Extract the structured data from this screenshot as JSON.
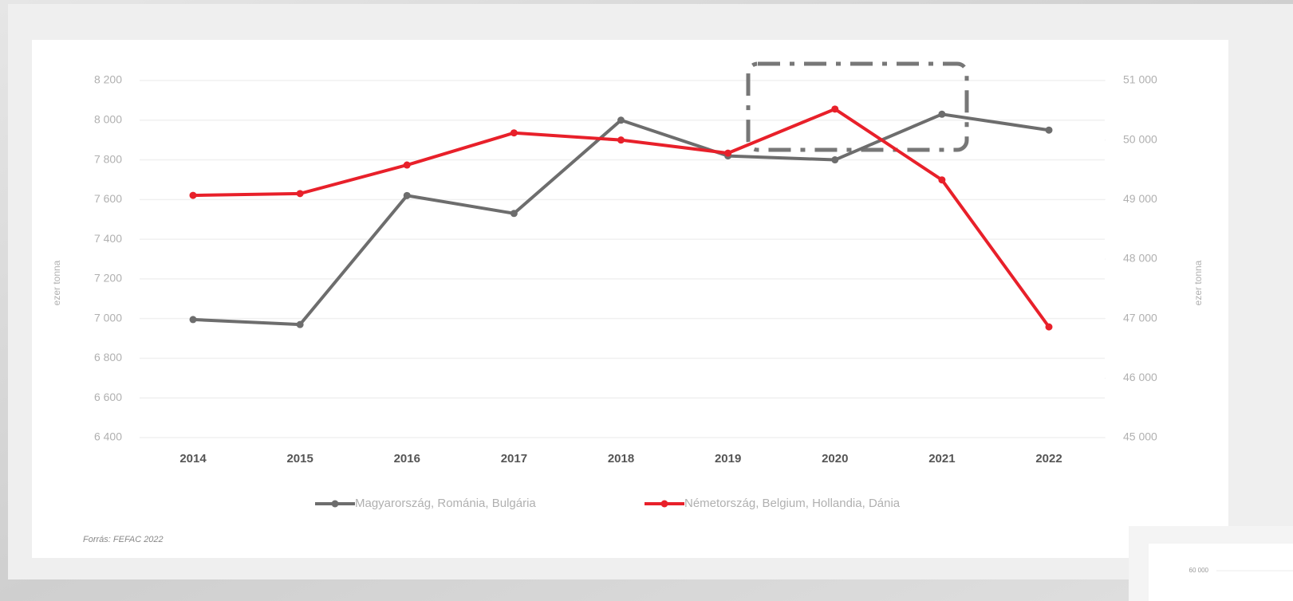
{
  "chart_data": {
    "type": "line",
    "categories": [
      "2014",
      "2015",
      "2016",
      "2017",
      "2018",
      "2019",
      "2020",
      "2021",
      "2022"
    ],
    "series": [
      {
        "name": "Magyarország, Románia, Bulgária",
        "color": "#6d6d6d",
        "axis": "y",
        "values": [
          6995,
          6970,
          7620,
          7530,
          8000,
          7820,
          7800,
          8030,
          7950
        ]
      },
      {
        "name": "Németország, Belgium, Hollandia, Dánia",
        "color": "#e8202a",
        "axis": "y2",
        "values": [
          49070,
          49100,
          49580,
          50120,
          50000,
          49780,
          50520,
          49330,
          46860
        ]
      }
    ],
    "ylim": [
      6400,
      8200
    ],
    "yticks": [
      {
        "value": 6400,
        "label": "6 400"
      },
      {
        "value": 6600,
        "label": "6 600"
      },
      {
        "value": 6800,
        "label": "6 800"
      },
      {
        "value": 7000,
        "label": "7 000"
      },
      {
        "value": 7200,
        "label": "7 200"
      },
      {
        "value": 7400,
        "label": "7 400"
      },
      {
        "value": 7600,
        "label": "7 600"
      },
      {
        "value": 7800,
        "label": "7 800"
      },
      {
        "value": 8000,
        "label": "8 000"
      },
      {
        "value": 8200,
        "label": "8 200"
      }
    ],
    "y2lim": [
      45000,
      51000
    ],
    "y2ticks": [
      {
        "value": 45000,
        "label": "45 000"
      },
      {
        "value": 46000,
        "label": "46 000"
      },
      {
        "value": 47000,
        "label": "47 000"
      },
      {
        "value": 48000,
        "label": "48 000"
      },
      {
        "value": 49000,
        "label": "49 000"
      },
      {
        "value": 50000,
        "label": "50 000"
      },
      {
        "value": 51000,
        "label": "51 000"
      }
    ],
    "ylabel": "ezer tonna",
    "y2label": "ezer tonna",
    "grid": true,
    "legend": "bottom",
    "source": "Forrás: FEFAC 2022"
  },
  "background_fragment": {
    "label": "60 000"
  }
}
